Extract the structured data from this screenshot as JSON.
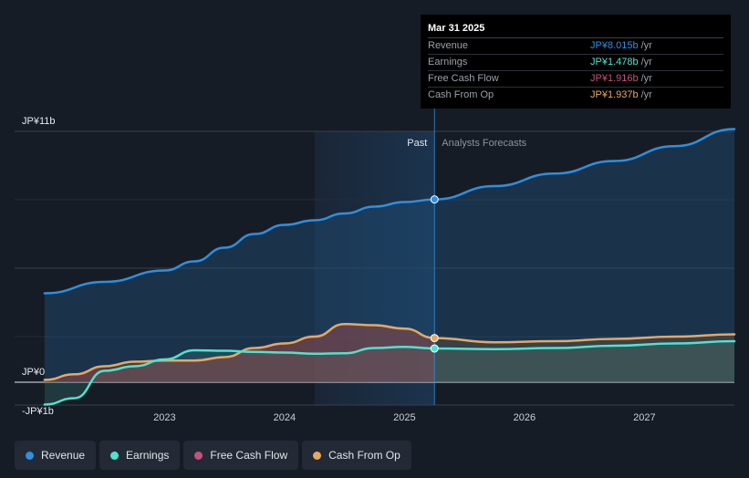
{
  "chart_data": {
    "type": "area",
    "title": "",
    "xlabel": "",
    "ylabel": "",
    "unit_prefix": "JP¥",
    "ylim": [
      -1,
      11
    ],
    "y_tick_labels": [
      "JP¥11b",
      "JP¥0",
      "-JP¥1b"
    ],
    "x_tick_labels": [
      "2023",
      "2024",
      "2025",
      "2026",
      "2027"
    ],
    "x_ticks": [
      2023,
      2024,
      2025,
      2026,
      2027
    ],
    "x_range": [
      2021.75,
      2027.75
    ],
    "past_region_start": 2024.25,
    "divider_x": 2025.25,
    "past_label": "Past",
    "forecast_label": "Analysts Forecasts",
    "series": [
      {
        "name": "Revenue",
        "color": "#2f8fe0",
        "x": [
          2022.0,
          2022.5,
          2023.0,
          2023.25,
          2023.5,
          2023.75,
          2024.0,
          2024.25,
          2024.5,
          2024.75,
          2025.0,
          2025.25,
          2025.75,
          2026.25,
          2026.75,
          2027.25,
          2027.75
        ],
        "values": [
          3.9,
          4.4,
          4.9,
          5.3,
          5.9,
          6.5,
          6.9,
          7.1,
          7.4,
          7.7,
          7.9,
          8.015,
          8.6,
          9.15,
          9.7,
          10.35,
          11.1
        ]
      },
      {
        "name": "Earnings",
        "color": "#4fe3cf",
        "x": [
          2022.0,
          2022.25,
          2022.5,
          2022.75,
          2023.0,
          2023.25,
          2023.5,
          2023.75,
          2024.0,
          2024.25,
          2024.5,
          2024.75,
          2025.0,
          2025.25,
          2025.75,
          2026.25,
          2026.75,
          2027.25,
          2027.75
        ],
        "values": [
          -0.98,
          -0.7,
          0.5,
          0.7,
          1.0,
          1.4,
          1.38,
          1.33,
          1.3,
          1.25,
          1.27,
          1.5,
          1.55,
          1.478,
          1.45,
          1.5,
          1.6,
          1.7,
          1.8
        ]
      },
      {
        "name": "Free Cash Flow",
        "color": "#c94f7c",
        "x": [
          2022.0,
          2022.5,
          2023.0,
          2023.5,
          2023.75,
          2024.0,
          2024.25,
          2024.5,
          2024.75,
          2025.0,
          2025.25
        ],
        "values": [
          0.1,
          0.6,
          0.95,
          1.1,
          1.5,
          1.7,
          2.1,
          2.55,
          2.5,
          2.35,
          1.916
        ]
      },
      {
        "name": "Cash From Op",
        "color": "#e8a862",
        "x": [
          2022.0,
          2022.25,
          2022.5,
          2022.75,
          2023.0,
          2023.25,
          2023.5,
          2023.75,
          2024.0,
          2024.25,
          2024.5,
          2024.75,
          2025.0,
          2025.25,
          2025.75,
          2026.25,
          2026.75,
          2027.25,
          2027.75
        ],
        "values": [
          0.1,
          0.35,
          0.7,
          0.9,
          0.95,
          0.95,
          1.1,
          1.5,
          1.7,
          2.0,
          2.55,
          2.5,
          2.35,
          1.937,
          1.75,
          1.8,
          1.9,
          2.0,
          2.1
        ]
      }
    ],
    "highlight": {
      "x": 2025.25,
      "points": [
        {
          "series": "Revenue",
          "value": 8.015
        },
        {
          "series": "Earnings",
          "value": 1.478
        },
        {
          "series": "Cash From Op",
          "value": 1.937
        }
      ]
    }
  },
  "tooltip": {
    "date": "Mar 31 2025",
    "rows": [
      {
        "label": "Revenue",
        "value": "JP¥8.015b",
        "unit": "/yr",
        "color": "#2f8fe0"
      },
      {
        "label": "Earnings",
        "value": "JP¥1.478b",
        "unit": "/yr",
        "color": "#4fe3cf"
      },
      {
        "label": "Free Cash Flow",
        "value": "JP¥1.916b",
        "unit": "/yr",
        "color": "#c94f7c"
      },
      {
        "label": "Cash From Op",
        "value": "JP¥1.937b",
        "unit": "/yr",
        "color": "#e8a862"
      }
    ]
  },
  "legend": [
    {
      "label": "Revenue",
      "color": "#2f8fe0"
    },
    {
      "label": "Earnings",
      "color": "#4fe3cf"
    },
    {
      "label": "Free Cash Flow",
      "color": "#c94f7c"
    },
    {
      "label": "Cash From Op",
      "color": "#e8a862"
    }
  ]
}
